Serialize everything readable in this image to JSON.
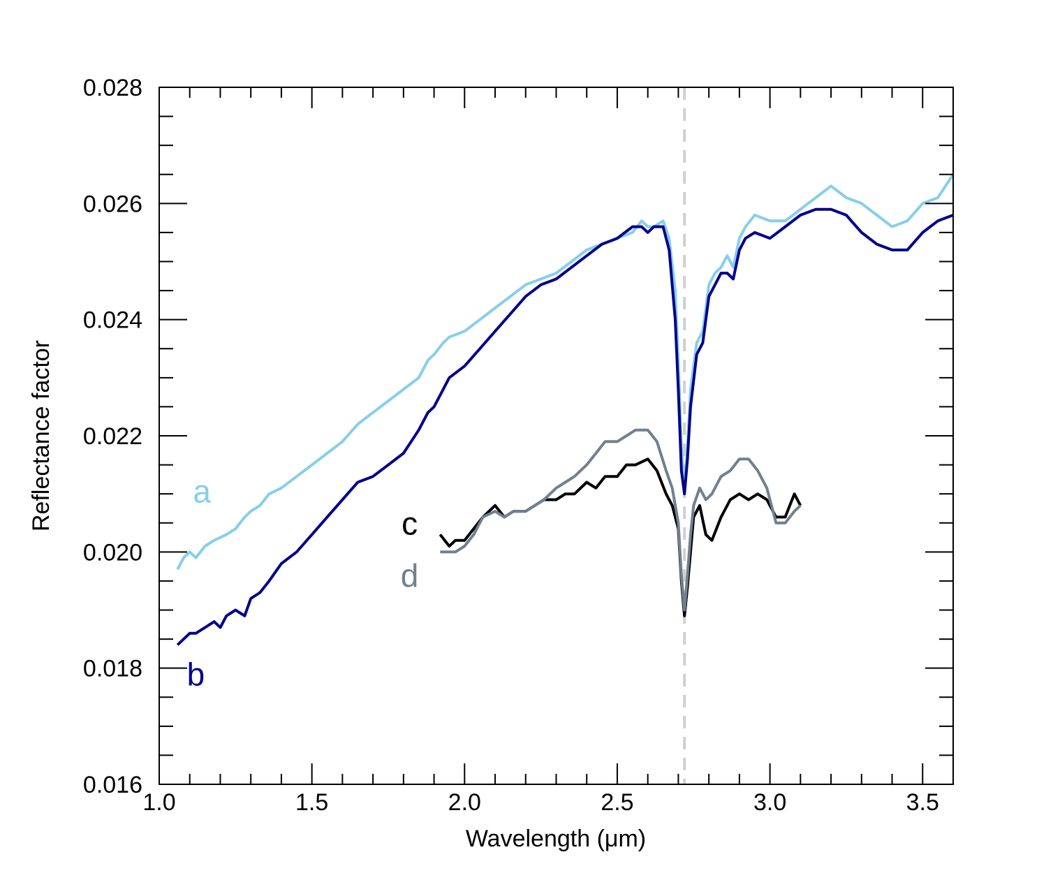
{
  "chart_data": {
    "type": "line",
    "title": "",
    "xlabel": "Wavelength (μm)",
    "ylabel": "Reflectance factor",
    "xlim": [
      1.0,
      3.6
    ],
    "ylim": [
      0.016,
      0.028
    ],
    "x_tick_labels": [
      "1.0",
      "1.5",
      "2.0",
      "2.5",
      "3.0",
      "3.5"
    ],
    "x_tick_values": [
      1.0,
      1.5,
      2.0,
      2.5,
      3.0,
      3.5
    ],
    "y_tick_labels": [
      "0.016",
      "0.018",
      "0.020",
      "0.022",
      "0.024",
      "0.026",
      "0.028"
    ],
    "y_tick_values": [
      0.016,
      0.018,
      0.02,
      0.022,
      0.024,
      0.026,
      0.028
    ],
    "grid": false,
    "reference_line": {
      "x": 2.72,
      "color": "#d0d0d0",
      "style": "dashed"
    },
    "series": [
      {
        "name": "a",
        "color": "#87ceeb",
        "label_x": 1.14,
        "label_y": 0.02085,
        "x": [
          1.06,
          1.08,
          1.1,
          1.12,
          1.15,
          1.18,
          1.22,
          1.25,
          1.28,
          1.3,
          1.33,
          1.36,
          1.4,
          1.45,
          1.5,
          1.55,
          1.6,
          1.65,
          1.7,
          1.75,
          1.8,
          1.85,
          1.88,
          1.9,
          1.93,
          1.95,
          2.0,
          2.05,
          2.1,
          2.15,
          2.2,
          2.25,
          2.3,
          2.35,
          2.4,
          2.45,
          2.5,
          2.55,
          2.58,
          2.6,
          2.62,
          2.65,
          2.67,
          2.69,
          2.7,
          2.71,
          2.72,
          2.73,
          2.74,
          2.76,
          2.78,
          2.8,
          2.82,
          2.84,
          2.86,
          2.88,
          2.9,
          2.92,
          2.95,
          3.0,
          3.05,
          3.1,
          3.15,
          3.2,
          3.25,
          3.3,
          3.35,
          3.4,
          3.45,
          3.5,
          3.55,
          3.6
        ],
        "y": [
          0.0197,
          0.0199,
          0.02,
          0.0199,
          0.0201,
          0.0202,
          0.0203,
          0.0204,
          0.0206,
          0.0207,
          0.0208,
          0.021,
          0.0211,
          0.0213,
          0.0215,
          0.0217,
          0.0219,
          0.0222,
          0.0224,
          0.0226,
          0.0228,
          0.023,
          0.0233,
          0.0234,
          0.0236,
          0.0237,
          0.0238,
          0.024,
          0.0242,
          0.0244,
          0.0246,
          0.0247,
          0.0248,
          0.025,
          0.0252,
          0.0253,
          0.0254,
          0.0255,
          0.0257,
          0.0256,
          0.0256,
          0.0257,
          0.0254,
          0.0245,
          0.0233,
          0.0218,
          0.0211,
          0.0218,
          0.0228,
          0.0236,
          0.0238,
          0.0246,
          0.0248,
          0.0249,
          0.0251,
          0.0249,
          0.0254,
          0.0256,
          0.0258,
          0.0257,
          0.0257,
          0.0259,
          0.0261,
          0.0263,
          0.0261,
          0.026,
          0.0258,
          0.0256,
          0.0257,
          0.026,
          0.0261,
          0.0265
        ]
      },
      {
        "name": "b",
        "color": "#00008b",
        "label_x": 1.12,
        "label_y": 0.0177,
        "x": [
          1.06,
          1.08,
          1.1,
          1.12,
          1.15,
          1.18,
          1.2,
          1.22,
          1.25,
          1.28,
          1.3,
          1.33,
          1.36,
          1.4,
          1.45,
          1.5,
          1.55,
          1.6,
          1.65,
          1.7,
          1.75,
          1.8,
          1.85,
          1.88,
          1.9,
          1.93,
          1.95,
          2.0,
          2.05,
          2.1,
          2.15,
          2.2,
          2.25,
          2.3,
          2.35,
          2.4,
          2.45,
          2.5,
          2.55,
          2.58,
          2.6,
          2.62,
          2.65,
          2.67,
          2.69,
          2.7,
          2.71,
          2.72,
          2.73,
          2.74,
          2.76,
          2.78,
          2.8,
          2.82,
          2.84,
          2.86,
          2.88,
          2.9,
          2.92,
          2.95,
          3.0,
          3.05,
          3.1,
          3.15,
          3.2,
          3.25,
          3.3,
          3.35,
          3.4,
          3.45,
          3.5,
          3.55,
          3.6
        ],
        "y": [
          0.0184,
          0.0185,
          0.0186,
          0.0186,
          0.0187,
          0.0188,
          0.0187,
          0.0189,
          0.019,
          0.0189,
          0.0192,
          0.0193,
          0.0195,
          0.0198,
          0.02,
          0.0203,
          0.0206,
          0.0209,
          0.0212,
          0.0213,
          0.0215,
          0.0217,
          0.0221,
          0.0224,
          0.0225,
          0.0228,
          0.023,
          0.0232,
          0.0235,
          0.0238,
          0.0241,
          0.0244,
          0.0246,
          0.0247,
          0.0249,
          0.0251,
          0.0253,
          0.0254,
          0.0256,
          0.0256,
          0.0255,
          0.0256,
          0.0256,
          0.0252,
          0.024,
          0.0228,
          0.0214,
          0.021,
          0.0216,
          0.0225,
          0.0234,
          0.0236,
          0.0244,
          0.0246,
          0.0248,
          0.0248,
          0.0247,
          0.0252,
          0.0254,
          0.0255,
          0.0254,
          0.0256,
          0.0258,
          0.0259,
          0.0259,
          0.0258,
          0.0255,
          0.0253,
          0.0252,
          0.0252,
          0.0255,
          0.0257,
          0.0258
        ]
      },
      {
        "name": "c",
        "color": "#000000",
        "label_x": 1.82,
        "label_y": 0.0203,
        "x": [
          1.92,
          1.95,
          1.97,
          2.0,
          2.03,
          2.06,
          2.1,
          2.13,
          2.16,
          2.2,
          2.23,
          2.26,
          2.3,
          2.33,
          2.36,
          2.4,
          2.43,
          2.46,
          2.5,
          2.53,
          2.56,
          2.6,
          2.63,
          2.66,
          2.68,
          2.7,
          2.71,
          2.72,
          2.73,
          2.74,
          2.75,
          2.77,
          2.79,
          2.81,
          2.84,
          2.87,
          2.9,
          2.93,
          2.96,
          2.99,
          3.02,
          3.05,
          3.08,
          3.1
        ],
        "y": [
          0.0203,
          0.0201,
          0.0202,
          0.0202,
          0.0204,
          0.0206,
          0.0208,
          0.0206,
          0.0207,
          0.0207,
          0.0208,
          0.0209,
          0.0209,
          0.021,
          0.021,
          0.0212,
          0.0211,
          0.0213,
          0.0213,
          0.0215,
          0.0215,
          0.0216,
          0.0214,
          0.021,
          0.0208,
          0.0204,
          0.0195,
          0.0189,
          0.0194,
          0.02,
          0.0206,
          0.0208,
          0.0203,
          0.0202,
          0.0206,
          0.0209,
          0.021,
          0.0209,
          0.021,
          0.0209,
          0.0206,
          0.0206,
          0.021,
          0.0208
        ]
      },
      {
        "name": "d",
        "color": "#708090",
        "label_x": 1.82,
        "label_y": 0.0194,
        "x": [
          1.92,
          1.95,
          1.97,
          2.0,
          2.03,
          2.06,
          2.1,
          2.13,
          2.16,
          2.2,
          2.23,
          2.26,
          2.3,
          2.33,
          2.36,
          2.4,
          2.43,
          2.46,
          2.5,
          2.53,
          2.56,
          2.6,
          2.63,
          2.66,
          2.68,
          2.7,
          2.71,
          2.72,
          2.73,
          2.74,
          2.75,
          2.77,
          2.79,
          2.81,
          2.84,
          2.87,
          2.9,
          2.93,
          2.96,
          2.99,
          3.02,
          3.05,
          3.08,
          3.1
        ],
        "y": [
          0.02,
          0.02,
          0.02,
          0.0201,
          0.0203,
          0.0206,
          0.0207,
          0.0206,
          0.0207,
          0.0207,
          0.0208,
          0.0209,
          0.0211,
          0.0212,
          0.0213,
          0.0215,
          0.0217,
          0.0219,
          0.0219,
          0.022,
          0.0221,
          0.0221,
          0.0219,
          0.0214,
          0.0211,
          0.0205,
          0.0196,
          0.019,
          0.0196,
          0.0203,
          0.0208,
          0.0211,
          0.0209,
          0.021,
          0.0213,
          0.0214,
          0.0216,
          0.0216,
          0.0214,
          0.0211,
          0.0205,
          0.0205,
          0.0207,
          0.0208
        ]
      }
    ]
  }
}
